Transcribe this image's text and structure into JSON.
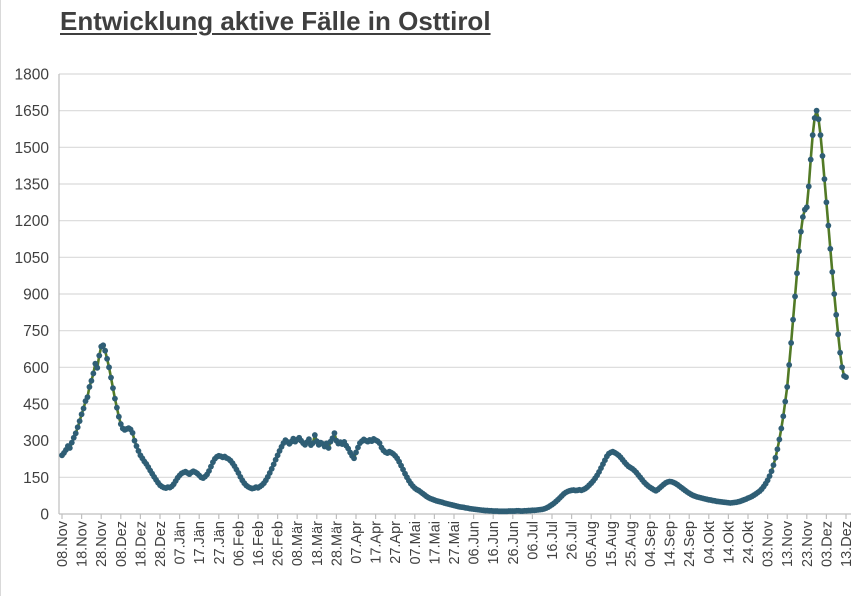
{
  "chart_data": {
    "type": "line",
    "title": "Entwicklung aktive Fälle in Osttirol",
    "ylabel": "",
    "xlabel": "",
    "ylim": [
      0,
      1800
    ],
    "y_ticks": [
      0,
      150,
      300,
      450,
      600,
      750,
      900,
      1050,
      1200,
      1350,
      1500,
      1650,
      1800
    ],
    "x_tick_interval_days": 10,
    "x_tick_labels": [
      "08.Nov",
      "18.Nov",
      "28.Nov",
      "08.Dez",
      "18.Dez",
      "28.Dez",
      "07.Jän",
      "17.Jän",
      "27.Jän",
      "06.Feb",
      "16.Feb",
      "26.Feb",
      "08.Mär",
      "18.Mär",
      "28.Mär",
      "07.Apr",
      "17.Apr",
      "27.Apr",
      "07.Mai",
      "17.Mai",
      "27.Mai",
      "06.Jun",
      "16.Jun",
      "26.Jun",
      "06.Jul",
      "16.Jul",
      "26.Jul",
      "05.Aug",
      "15.Aug",
      "25.Aug",
      "04.Sep",
      "14.Sep",
      "24.Sep",
      "04.Okt",
      "14.Okt",
      "24.Okt",
      "03.Nov",
      "13.Nov",
      "23.Nov",
      "03.Dez",
      "13.Dez"
    ],
    "grid": "horizontal",
    "legend": "none",
    "line_color": "#527a26",
    "marker_color": "#2f5e75",
    "gridline_color": "#d9d9d9",
    "axis_color": "#bfbfbf",
    "text_color": "#404040",
    "series": [
      {
        "values": [
          240,
          250,
          262,
          278,
          270,
          292,
          312,
          330,
          355,
          380,
          408,
          432,
          462,
          478,
          520,
          545,
          575,
          615,
          598,
          648,
          685,
          690,
          668,
          635,
          600,
          558,
          515,
          472,
          435,
          398,
          368,
          350,
          344,
          348,
          351,
          346,
          332,
          300,
          278,
          258,
          240,
          228,
          215,
          205,
          192,
          178,
          165,
          152,
          140,
          128,
          118,
          112,
          108,
          106,
          110,
          108,
          113,
          122,
          135,
          148,
          158,
          166,
          170,
          173,
          168,
          163,
          170,
          175,
          171,
          166,
          158,
          150,
          147,
          153,
          162,
          176,
          194,
          212,
          226,
          234,
          238,
          236,
          232,
          235,
          229,
          225,
          218,
          208,
          196,
          182,
          168,
          152,
          138,
          126,
          117,
          111,
          107,
          104,
          106,
          110,
          107,
          112,
          118,
          126,
          138,
          152,
          168,
          185,
          203,
          222,
          240,
          258,
          275,
          290,
          302,
          295,
          287,
          296,
          308,
          296,
          304,
          312,
          300,
          290,
          283,
          294,
          306,
          282,
          290,
          323,
          298,
          283,
          292,
          287,
          276,
          289,
          270,
          296,
          310,
          331,
          300,
          288,
          294,
          286,
          295,
          280,
          268,
          252,
          238,
          228,
          252,
          272,
          290,
          298,
          305,
          300,
          296,
          303,
          298,
          307,
          302,
          298,
          290,
          272,
          260,
          253,
          249,
          255,
          251,
          246,
          238,
          228,
          214,
          198,
          182,
          165,
          150,
          136,
          124,
          114,
          106,
          100,
          96,
          90,
          84,
          78,
          72,
          67,
          63,
          60,
          57,
          54,
          52,
          50,
          48,
          45,
          43,
          41,
          39,
          37,
          35,
          33,
          31,
          29,
          28,
          27,
          25,
          24,
          22,
          21,
          20,
          19,
          18,
          17,
          16,
          15,
          14,
          14,
          13,
          13,
          12,
          12,
          12,
          11,
          11,
          11,
          11,
          11,
          12,
          12,
          12,
          12,
          13,
          13,
          12,
          12,
          13,
          13,
          14,
          14,
          15,
          15,
          16,
          17,
          18,
          19,
          21,
          24,
          28,
          33,
          38,
          44,
          51,
          58,
          66,
          74,
          82,
          88,
          92,
          95,
          97,
          98,
          96,
          97,
          99,
          97,
          100,
          104,
          110,
          118,
          126,
          135,
          146,
          158,
          172,
          188,
          204,
          220,
          236,
          247,
          252,
          255,
          251,
          246,
          240,
          232,
          222,
          212,
          203,
          195,
          190,
          185,
          178,
          170,
          160,
          150,
          140,
          130,
          122,
          115,
          109,
          104,
          99,
          95,
          100,
          107,
          114,
          121,
          127,
          131,
          133,
          132,
          129,
          125,
          120,
          114,
          108,
          102,
          96,
          90,
          85,
          80,
          76,
          73,
          70,
          68,
          66,
          64,
          62,
          60,
          58,
          57,
          55,
          54,
          52,
          51,
          50,
          49,
          48,
          47,
          46,
          45,
          46,
          47,
          48,
          50,
          52,
          55,
          58,
          61,
          65,
          68,
          72,
          77,
          82,
          88,
          94,
          102,
          112,
          124,
          138,
          155,
          175,
          200,
          230,
          265,
          305,
          350,
          400,
          460,
          520,
          610,
          700,
          795,
          890,
          985,
          1075,
          1155,
          1215,
          1245,
          1255,
          1340,
          1450,
          1550,
          1620,
          1650,
          1615,
          1550,
          1465,
          1370,
          1275,
          1180,
          1085,
          990,
          900,
          815,
          735,
          660,
          600,
          565,
          560
        ]
      }
    ]
  }
}
